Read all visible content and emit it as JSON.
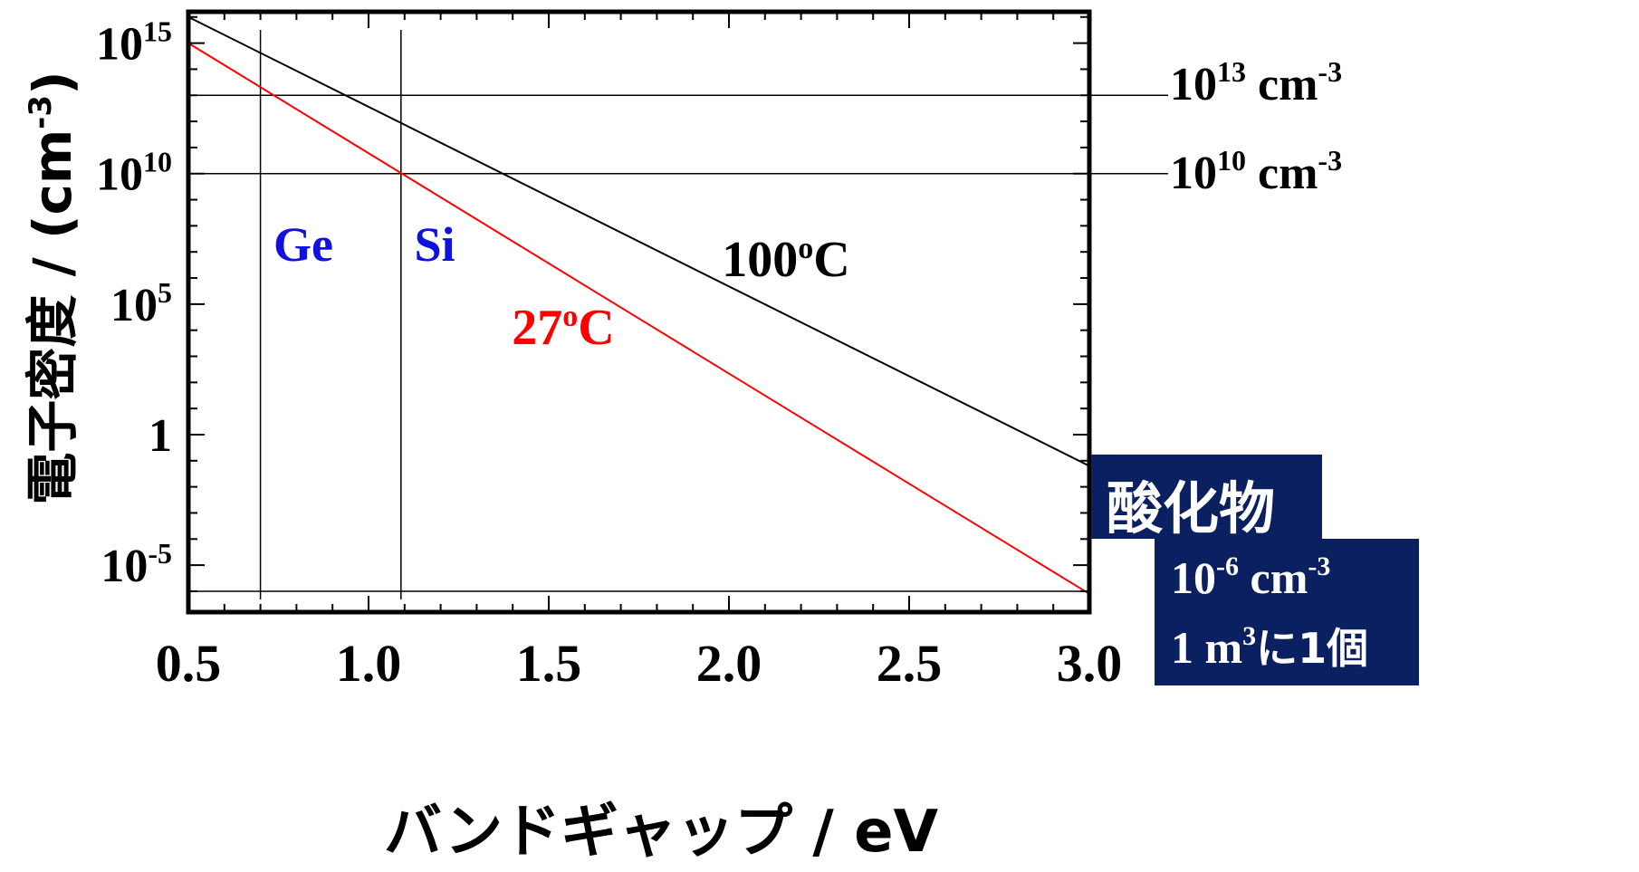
{
  "chart_data": {
    "type": "line",
    "xlabel": "バンドギャップ / eV",
    "ylabel": "電子密度 / (cm-3)",
    "ylabel_main": "電子密度 / (cm",
    "ylabel_sup": "-3",
    "ylabel_end": ")",
    "xlim": [
      0.5,
      3.0
    ],
    "yscale": "log",
    "ylim_log10": [
      -6.8,
      16.2
    ],
    "x_ticks": [
      {
        "value": 0.5,
        "label": "0.5"
      },
      {
        "value": 1.0,
        "label": "1.0"
      },
      {
        "value": 1.5,
        "label": "1.5"
      },
      {
        "value": 2.0,
        "label": "2.0"
      },
      {
        "value": 2.5,
        "label": "2.5"
      },
      {
        "value": 3.0,
        "label": "3.0"
      }
    ],
    "y_ticks": [
      {
        "exp": 15,
        "base": "10",
        "sup": "15"
      },
      {
        "exp": 10,
        "base": "10",
        "sup": "10"
      },
      {
        "exp": 5,
        "base": "10",
        "sup": "5"
      },
      {
        "exp": 0,
        "base": "1",
        "sup": ""
      },
      {
        "exp": -5,
        "base": "10",
        "sup": "-5"
      }
    ],
    "series": [
      {
        "name": "100oC",
        "label_main": "100",
        "label_sup": "o",
        "label_end": "C",
        "color": "#000000",
        "points": [
          {
            "x": 0.5,
            "log10_y": 16.0
          },
          {
            "x": 3.0,
            "log10_y": -1.2
          }
        ]
      },
      {
        "name": "27oC",
        "label_main": "27",
        "label_sup": "o",
        "label_end": "C",
        "color": "#ff0000",
        "points": [
          {
            "x": 0.5,
            "log10_y": 15.0
          },
          {
            "x": 3.0,
            "log10_y": -6.1
          }
        ]
      }
    ],
    "reference_lines_x": [
      {
        "value": 0.7,
        "label": "Ge",
        "color": "#1010e0"
      },
      {
        "value": 1.09,
        "label": "Si",
        "color": "#1010e0"
      }
    ],
    "reference_lines_y": [
      {
        "exp": 13,
        "base": "10",
        "sup": "13",
        "unit": " cm",
        "unit_sup": "-3"
      },
      {
        "exp": 10,
        "base": "10",
        "sup": "10",
        "unit": " cm",
        "unit_sup": "-3"
      },
      {
        "exp": -6,
        "base": "10",
        "sup": "-6",
        "unit": " cm",
        "unit_sup": "-3"
      }
    ],
    "grid": false
  },
  "annotation_box": {
    "title": "酸化物",
    "line1_base": "10",
    "line1_sup": "-6",
    "line1_unit": " cm",
    "line1_unit_sup": "-3",
    "line2_a": "1 m",
    "line2_sup": "3",
    "line2_b": "に1個",
    "color": "#0b2060"
  }
}
